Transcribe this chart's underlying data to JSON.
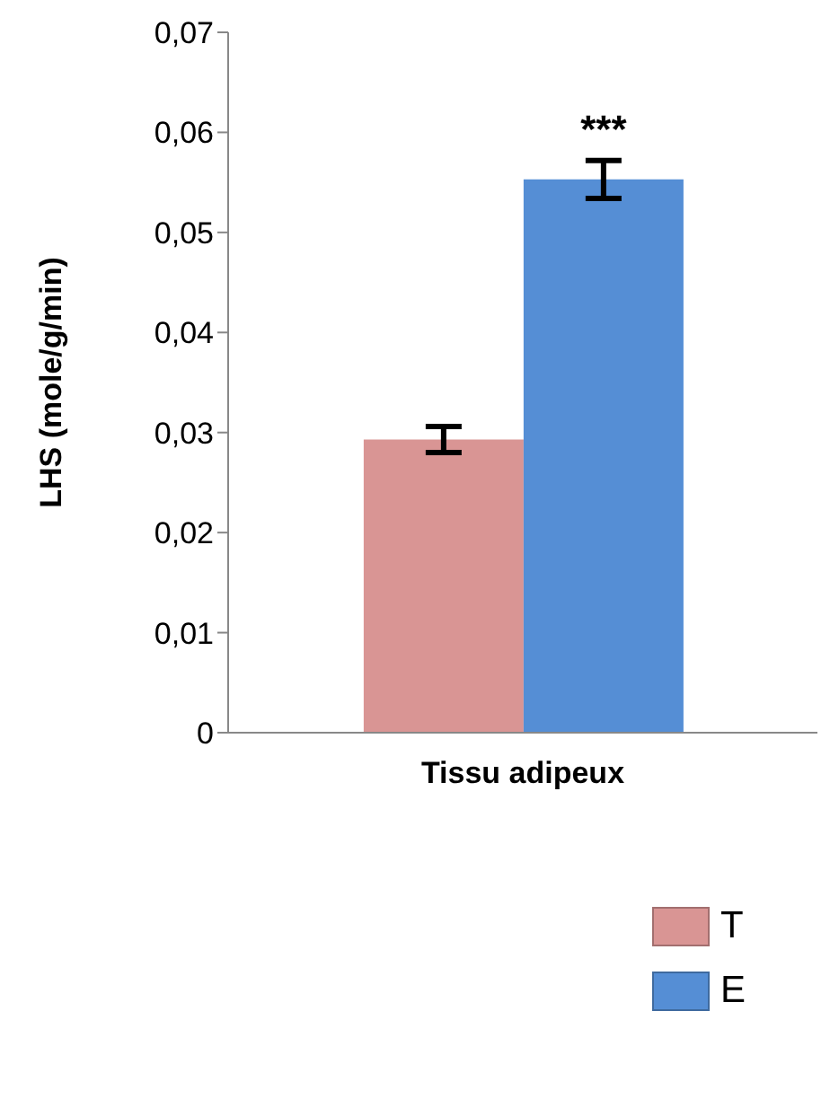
{
  "chart_data": {
    "type": "bar",
    "ylabel": "LHS (mole/g/min)",
    "xlabel": "Tissu adipeux",
    "categories": [
      null
    ],
    "series": [
      {
        "name": "T",
        "color": "#d99594",
        "values": [
          0.0293
        ],
        "errors": [
          0.0013
        ]
      },
      {
        "name": "E",
        "color": "#558ed5",
        "values": [
          0.0553
        ],
        "errors": [
          0.0019
        ]
      }
    ],
    "ylim": [
      0,
      0.07
    ],
    "yticks": [
      {
        "value": 0,
        "label": "0"
      },
      {
        "value": 0.01,
        "label": "0,01"
      },
      {
        "value": 0.02,
        "label": "0,02"
      },
      {
        "value": 0.03,
        "label": "0,03"
      },
      {
        "value": 0.04,
        "label": "0,04"
      },
      {
        "value": 0.05,
        "label": "0,05"
      },
      {
        "value": 0.06,
        "label": "0,06"
      },
      {
        "value": 0.07,
        "label": "0,07"
      }
    ],
    "annotations": [
      "***"
    ],
    "grid": false,
    "legend": "bottom right"
  }
}
